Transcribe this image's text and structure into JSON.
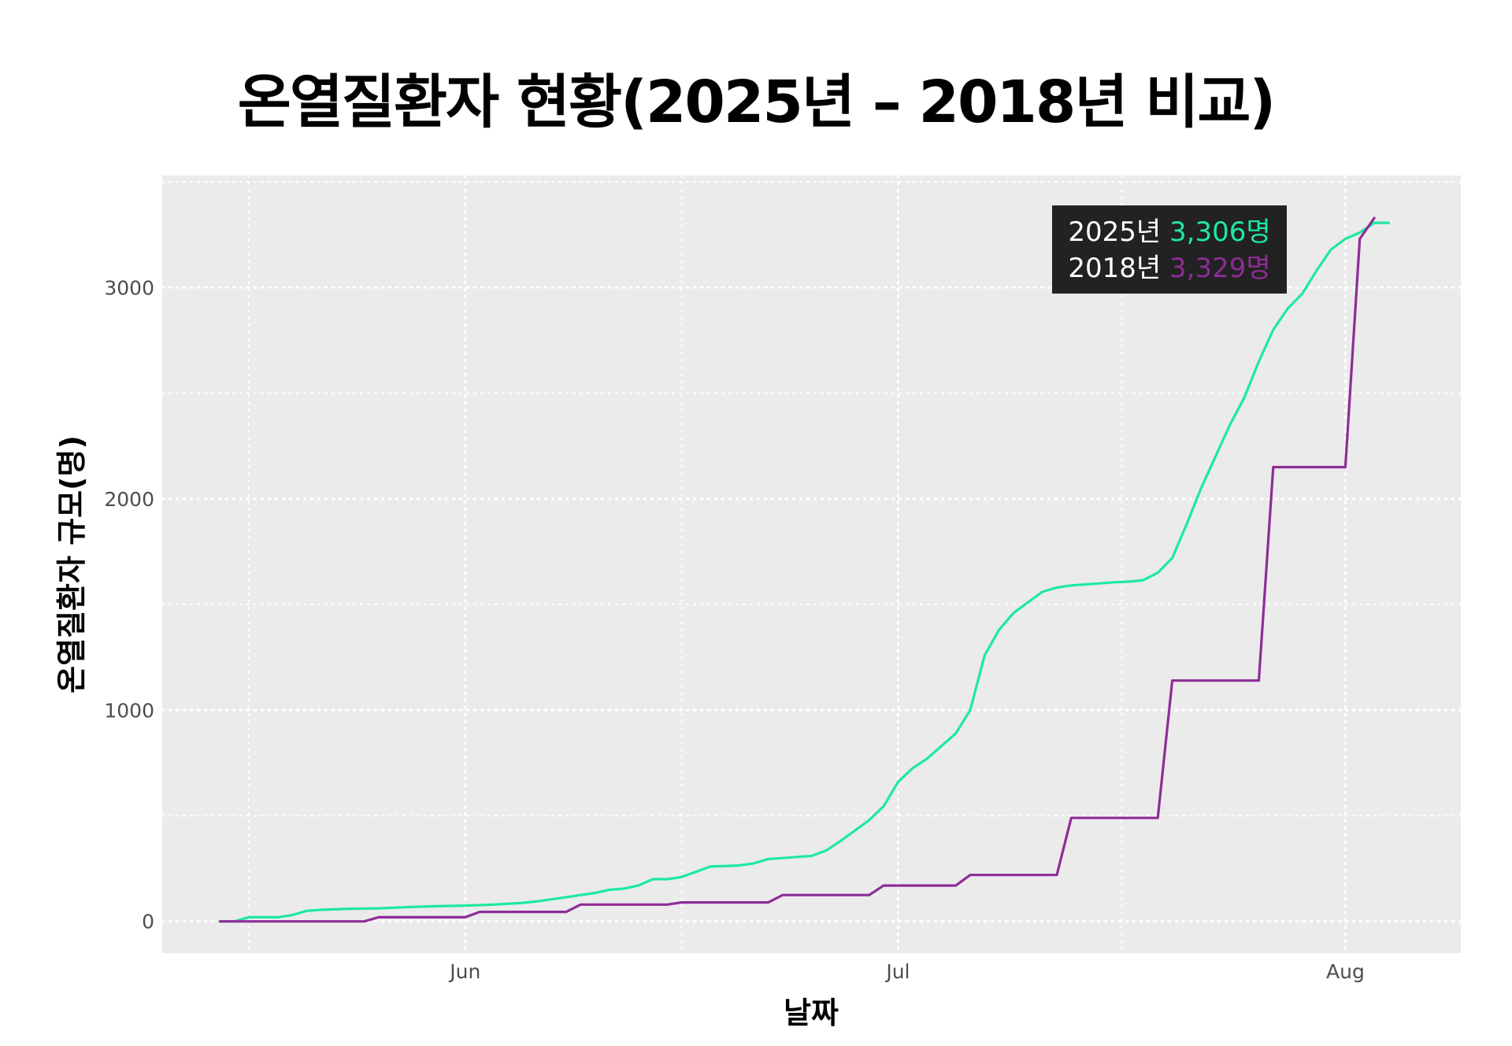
{
  "chart_data": {
    "type": "line",
    "title": "온열질환자 현황(2025년 – 2018년 비교)",
    "xlabel": "날짜",
    "ylabel": "온열질환자 규모(명)",
    "ylim": [
      -150,
      3530
    ],
    "xlim": [
      "2025-05-11",
      "2025-08-09"
    ],
    "y_ticks": [
      0,
      1000,
      2000,
      3000
    ],
    "x_ticks": [
      {
        "date": "2025-06-01",
        "label": "Jun"
      },
      {
        "date": "2025-07-01",
        "label": "Jul"
      },
      {
        "date": "2025-08-01",
        "label": "Aug"
      }
    ],
    "grid": "dotted-white",
    "background": "#ebebeb",
    "colors": {
      "2025": "#1de9a0",
      "2018": "#8e2d97"
    },
    "series": [
      {
        "name": "2025년",
        "color": "#1de9a0",
        "step": false,
        "x": [
          "2025-05-15",
          "2025-05-16",
          "2025-05-17",
          "2025-05-18",
          "2025-05-19",
          "2025-05-20",
          "2025-05-21",
          "2025-05-22",
          "2025-05-24",
          "2025-05-26",
          "2025-05-28",
          "2025-05-30",
          "2025-06-01",
          "2025-06-03",
          "2025-06-05",
          "2025-06-06",
          "2025-06-08",
          "2025-06-09",
          "2025-06-10",
          "2025-06-11",
          "2025-06-12",
          "2025-06-13",
          "2025-06-14",
          "2025-06-15",
          "2025-06-16",
          "2025-06-17",
          "2025-06-18",
          "2025-06-19",
          "2025-06-20",
          "2025-06-21",
          "2025-06-22",
          "2025-06-23",
          "2025-06-24",
          "2025-06-25",
          "2025-06-26",
          "2025-06-27",
          "2025-06-28",
          "2025-06-29",
          "2025-06-30",
          "2025-07-01",
          "2025-07-02",
          "2025-07-03",
          "2025-07-04",
          "2025-07-05",
          "2025-07-06",
          "2025-07-07",
          "2025-07-08",
          "2025-07-09",
          "2025-07-10",
          "2025-07-11",
          "2025-07-12",
          "2025-07-13",
          "2025-07-14",
          "2025-07-15",
          "2025-07-16",
          "2025-07-17",
          "2025-07-18",
          "2025-07-19",
          "2025-07-20",
          "2025-07-21",
          "2025-07-22",
          "2025-07-23",
          "2025-07-24",
          "2025-07-25",
          "2025-07-26",
          "2025-07-27",
          "2025-07-28",
          "2025-07-29",
          "2025-07-30",
          "2025-07-31",
          "2025-08-01",
          "2025-08-02",
          "2025-08-03",
          "2025-08-04"
        ],
        "values": [
          0,
          0,
          20,
          20,
          20,
          30,
          50,
          55,
          60,
          62,
          68,
          72,
          75,
          80,
          88,
          95,
          115,
          125,
          135,
          150,
          155,
          170,
          200,
          200,
          210,
          235,
          260,
          262,
          265,
          275,
          295,
          300,
          305,
          310,
          335,
          380,
          430,
          480,
          545,
          660,
          725,
          770,
          830,
          890,
          1000,
          1260,
          1380,
          1460,
          1510,
          1560,
          1580,
          1590,
          1595,
          1600,
          1605,
          1608,
          1615,
          1650,
          1720,
          1880,
          2050,
          2200,
          2350,
          2480,
          2650,
          2800,
          2900,
          2970,
          3080,
          3180,
          3230,
          3260,
          3306,
          3306
        ]
      },
      {
        "name": "2018년",
        "color": "#8e2d97",
        "step": true,
        "x": [
          "2025-05-15",
          "2025-05-20",
          "2025-05-25",
          "2025-05-26",
          "2025-06-01",
          "2025-06-02",
          "2025-06-08",
          "2025-06-09",
          "2025-06-15",
          "2025-06-16",
          "2025-06-22",
          "2025-06-23",
          "2025-06-29",
          "2025-06-30",
          "2025-07-05",
          "2025-07-06",
          "2025-07-12",
          "2025-07-13",
          "2025-07-19",
          "2025-07-20",
          "2025-07-26",
          "2025-07-27",
          "2025-08-01",
          "2025-08-02",
          "2025-08-03"
        ],
        "values": [
          0,
          0,
          0,
          20,
          20,
          45,
          45,
          80,
          80,
          90,
          90,
          125,
          125,
          170,
          170,
          220,
          220,
          490,
          490,
          1140,
          1140,
          2150,
          2150,
          3230,
          3329
        ]
      }
    ],
    "annotation": {
      "lines": [
        {
          "year": "2025년",
          "value": "3,306명",
          "color": "#1de9a0"
        },
        {
          "year": "2018년",
          "value": "3,329명",
          "color": "#8e2d97"
        }
      ],
      "position": "top-right",
      "background": "#222222"
    }
  }
}
